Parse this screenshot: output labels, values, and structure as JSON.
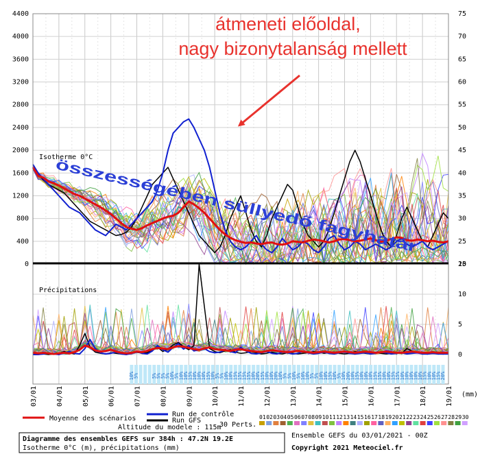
{
  "chart_data": {
    "type": "line",
    "temperature_panel": {
      "label": "Isotherme 0°C",
      "left_ticks": [
        0,
        400,
        800,
        1200,
        1600,
        2000,
        2400,
        2800,
        3200,
        3600,
        4000,
        4400
      ],
      "ylim": [
        0,
        4400
      ],
      "right_ticks": [
        20,
        25,
        30,
        35,
        40,
        45,
        50,
        55,
        60,
        65,
        70,
        75
      ],
      "mean_series": {
        "name": "Moyenne des scénarios",
        "values": [
          1700,
          1550,
          1520,
          1450,
          1420,
          1380,
          1330,
          1280,
          1230,
          1200,
          1150,
          1100,
          1050,
          1000,
          940,
          880,
          800,
          720,
          650,
          620,
          600,
          630,
          680,
          720,
          760,
          800,
          830,
          850,
          900,
          1000,
          1100,
          1050,
          980,
          900,
          800,
          700,
          600,
          520,
          460,
          420,
          390,
          370,
          380,
          360,
          350,
          370,
          380,
          350,
          340,
          360,
          400,
          390,
          380,
          410,
          430,
          420,
          400,
          380,
          400,
          430,
          440,
          420,
          400,
          410,
          430,
          450,
          420,
          390,
          410,
          440,
          470,
          460,
          420,
          410,
          430,
          420,
          400,
          410,
          390,
          380,
          400
        ]
      },
      "control_series": {
        "name": "Run de contrôle",
        "values": [
          1750,
          1600,
          1500,
          1400,
          1300,
          1200,
          1100,
          1000,
          950,
          900,
          800,
          700,
          600,
          550,
          500,
          600,
          700,
          650,
          600,
          700,
          800,
          900,
          1000,
          1100,
          1300,
          1600,
          2000,
          2300,
          2400,
          2500,
          2550,
          2400,
          2200,
          2000,
          1700,
          1300,
          900,
          600,
          400,
          300,
          250,
          300,
          400,
          500,
          350,
          250,
          200,
          300,
          450,
          350,
          250,
          300,
          400,
          350,
          250,
          200,
          300,
          450,
          500,
          350,
          250,
          300,
          400,
          350,
          250,
          300,
          350,
          300,
          250,
          300,
          400,
          450,
          350,
          300,
          350,
          400,
          300,
          250,
          300,
          350,
          400
        ]
      },
      "gfs_series": {
        "name": "Run GFS",
        "values": [
          1700,
          1580,
          1480,
          1400,
          1350,
          1300,
          1250,
          1150,
          1050,
          950,
          850,
          750,
          700,
          650,
          600,
          550,
          500,
          520,
          560,
          650,
          800,
          1000,
          1200,
          1400,
          1500,
          1600,
          1700,
          1500,
          1300,
          1100,
          900,
          700,
          500,
          400,
          300,
          200,
          300,
          500,
          800,
          1000,
          1200,
          900,
          600,
          400,
          300,
          500,
          800,
          1000,
          1200,
          1400,
          1300,
          1000,
          700,
          500,
          400,
          300,
          400,
          600,
          900,
          1200,
          1500,
          1800,
          2000,
          1800,
          1500,
          1200,
          900,
          600,
          400,
          300,
          500,
          800,
          1000,
          800,
          600,
          400,
          300,
          500,
          700,
          900,
          800
        ]
      },
      "thick_line_value": 0
    },
    "precipitation_panel": {
      "label": "Précipitations",
      "right_ticks": [
        0,
        5,
        10,
        15
      ],
      "ylim": [
        0,
        15
      ],
      "unit": "(mm)",
      "mean_series": {
        "name": "Moyenne des scénarios",
        "values": [
          0.3,
          0.2,
          0.3,
          0.2,
          0.1,
          0.2,
          0.3,
          0.2,
          0.4,
          0.8,
          1.5,
          1.2,
          0.7,
          0.5,
          0.6,
          0.8,
          0.5,
          0.3,
          0.2,
          0.3,
          0.5,
          0.4,
          0.6,
          0.9,
          1.1,
          1.0,
          0.9,
          1.2,
          1.4,
          1.3,
          1.1,
          0.9,
          0.8,
          1.0,
          1.2,
          0.9,
          0.8,
          0.7,
          0.6,
          0.8,
          0.9,
          0.7,
          0.6,
          0.5,
          0.4,
          0.6,
          0.7,
          0.6,
          0.5,
          0.4,
          0.5,
          0.6,
          0.5,
          0.4,
          0.3,
          0.4,
          0.5,
          0.4,
          0.3,
          0.4,
          0.5,
          0.4,
          0.3,
          0.4,
          0.5,
          0.4,
          0.3,
          0.4,
          0.5,
          0.4,
          0.3,
          0.3,
          0.4,
          0.5,
          0.4,
          0.3,
          0.3,
          0.4,
          0.3,
          0.3,
          0.3
        ]
      },
      "control_series": {
        "name": "Run de contrôle",
        "values": [
          0,
          0,
          0.1,
          0.2,
          0.1,
          0,
          0.3,
          0.5,
          0.2,
          0.1,
          1.0,
          2.5,
          1.0,
          0.3,
          0.1,
          0.2,
          0.4,
          0.1,
          0,
          0.2,
          0.5,
          0.2,
          0.1,
          0.6,
          1.5,
          0.8,
          0.4,
          1.2,
          1.8,
          0.9,
          1.5,
          0.6,
          0.8,
          1.0,
          0.5,
          0.3,
          0.4,
          0.8,
          0.5,
          0.3,
          1.2,
          0.6,
          0.2,
          0.1,
          0.3,
          0.5,
          0.2,
          0.1,
          0.4,
          0.3,
          0.1,
          0.2,
          0.5,
          0.3,
          0.1,
          0.2,
          0.4,
          0.2,
          0.1,
          0.3,
          0.5,
          0.2,
          0.1,
          0.2,
          0.3,
          0.1,
          0.2,
          0.4,
          0.3,
          0.1,
          0.2,
          0.3,
          0.1,
          0.2,
          0.3,
          0.1,
          0.1,
          0.2,
          0.1,
          0.1,
          0.1
        ]
      },
      "gfs_series": {
        "name": "Run GFS",
        "values": [
          0,
          0,
          0.1,
          0,
          0.1,
          0.2,
          0.5,
          0.3,
          0.1,
          1.5,
          3.5,
          1.2,
          0.4,
          0.2,
          0.1,
          0.3,
          0.2,
          0.1,
          0,
          0.2,
          0.4,
          0.2,
          0.3,
          0.8,
          1.2,
          0.5,
          0.9,
          1.6,
          2.0,
          1.3,
          0.8,
          1.5,
          15,
          8,
          1.0,
          0.5,
          0.3,
          0.6,
          0.8,
          0.4,
          0.2,
          0.3,
          0.5,
          0.3,
          0.1,
          0.2,
          0.4,
          0.2,
          0.1,
          0.3,
          0.2,
          0.1,
          0.2,
          0.3,
          0.5,
          0.4,
          0.2,
          0.3,
          0.4,
          0.2,
          0.1,
          0.2,
          0.5,
          0.3,
          0.2,
          0.1,
          0.3,
          0.2,
          0.1,
          0.2,
          0.3,
          0.2,
          1.0,
          0.6,
          0.3,
          0.2,
          0.1,
          0.2,
          0.1,
          0.1,
          0.1
        ]
      }
    },
    "x_tick_labels": [
      "03/01",
      "04/01",
      "05/01",
      "06/01",
      "07/01",
      "08/01",
      "09/01",
      "10/01",
      "11/01",
      "12/01",
      "13/01",
      "14/01",
      "15/01",
      "16/01",
      "17/01",
      "18/01",
      "19/01"
    ],
    "snow_probabilities": [
      "10%",
      "5%",
      "",
      "",
      "",
      "5%",
      "5%",
      "5%",
      "5%",
      "10%",
      "5%",
      "10%",
      "10%",
      "15%",
      "10%",
      "10%",
      "10%",
      "15%",
      "10%",
      "5%",
      "5%",
      "10%",
      "10%",
      "15%",
      "15%",
      "15%",
      "15%",
      "10%",
      "20%",
      "15%",
      "10%",
      "10%",
      "20%",
      "10%",
      "5%",
      "5%",
      "10%",
      "5%",
      "10%",
      "10%",
      "5%",
      "5%",
      "10%",
      "10%",
      "15%",
      "10%",
      "5%",
      "10%",
      "20%",
      "10%",
      "15%",
      "10%",
      "10%",
      "10%",
      "15%",
      "15%",
      "10%",
      "10%",
      "15%",
      "15%",
      "10%",
      "10%",
      "10%",
      "10%",
      "10%",
      "15%",
      "10%",
      "10%",
      "15%",
      "20%"
    ],
    "perturbation_count_label": "30 Perts.",
    "perturbation_numbers": [
      "01",
      "02",
      "03",
      "04",
      "05",
      "06",
      "07",
      "08",
      "09",
      "10",
      "11",
      "12",
      "13",
      "14",
      "15",
      "16",
      "17",
      "18",
      "19",
      "20",
      "21",
      "22",
      "23",
      "24",
      "25",
      "26",
      "27",
      "28",
      "29",
      "30"
    ],
    "perturbation_colors": [
      "#c8a000",
      "#7fa0e0",
      "#e08040",
      "#a06030",
      "#50b050",
      "#e070c0",
      "#8080ff",
      "#e0c040",
      "#40c0c0",
      "#c05050",
      "#80c040",
      "#c080ff",
      "#ff8000",
      "#408080",
      "#b0b0ff",
      "#a0a000",
      "#ff60a0",
      "#6060c0",
      "#ffb060",
      "#30a0ff",
      "#c0c000",
      "#904090",
      "#60e0a0",
      "#e04040",
      "#4040ff",
      "#a0e040",
      "#ff9090",
      "#808040",
      "#40a040",
      "#d0a0ff"
    ]
  },
  "annotations": {
    "headline_line1": "átmeneti előoldal,",
    "headline_line2": "nagy bizonytalanság mellett",
    "diagonal_text": "összességében süllyedő fagyhatár",
    "arrow_color": "#e8322d"
  },
  "legend": {
    "mean": "Moyenne des scénarios",
    "control": "Run de contrôle",
    "gfs": "Run GFS"
  },
  "footer": {
    "title": "Diagramme des ensembles GEFS sur 384h : 47.2N 19.2E",
    "subtitle": "Isotherme 0°C (m), précipitations (mm)",
    "altitude": "Altitude du modele : 115m",
    "ensemble_run": "Ensemble GEFS du 03/01/2021 - 00Z",
    "copyright": "Copyright 2021 Meteociel.fr"
  },
  "colors": {
    "mean": "#e01010",
    "control": "#1020d0",
    "gfs": "#000000"
  }
}
